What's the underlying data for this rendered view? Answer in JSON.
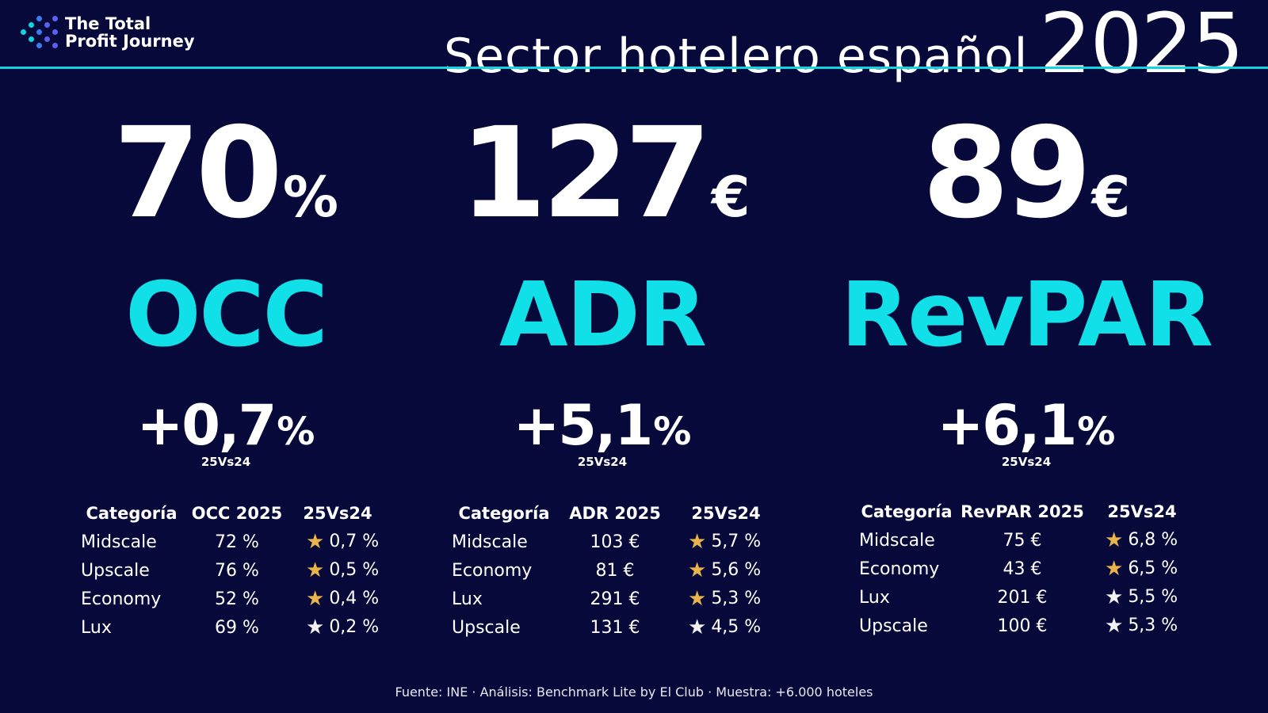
{
  "brand": {
    "line1": "The Total",
    "line2": "Profit Journey",
    "accent": "#12d4e0"
  },
  "title": {
    "main": "Sector hotelero español",
    "year": "2025"
  },
  "metrics": [
    {
      "value": "70",
      "unit": "%",
      "label": "OCC",
      "change": "+0,7",
      "change_unit": "%",
      "compare": "25Vs24",
      "table": {
        "headers": [
          "Categoría",
          "OCC 2025",
          "25Vs24"
        ],
        "rows": [
          {
            "category": "Midscale",
            "value": "72 %",
            "change": "0,7 %",
            "star": "gold",
            "star_icon": "★"
          },
          {
            "category": "Upscale",
            "value": "76 %",
            "change": "0,5 %",
            "star": "gold",
            "star_icon": "★"
          },
          {
            "category": "Economy",
            "value": "52 %",
            "change": "0,4 %",
            "star": "gold",
            "star_icon": "★"
          },
          {
            "category": "Lux",
            "value": "69 %",
            "change": "0,2 %",
            "star": "white",
            "star_icon": "★"
          }
        ]
      }
    },
    {
      "value": "127",
      "unit": "€",
      "label": "ADR",
      "change": "+5,1",
      "change_unit": "%",
      "compare": "25Vs24",
      "table": {
        "headers": [
          "Categoría",
          "ADR 2025",
          "25Vs24"
        ],
        "rows": [
          {
            "category": "Midscale",
            "value": "103 €",
            "change": "5,7 %",
            "star": "gold",
            "star_icon": "★"
          },
          {
            "category": "Economy",
            "value": "81 €",
            "change": "5,6 %",
            "star": "gold",
            "star_icon": "★"
          },
          {
            "category": "Lux",
            "value": "291 €",
            "change": "5,3 %",
            "star": "gold",
            "star_icon": "★"
          },
          {
            "category": "Upscale",
            "value": "131 €",
            "change": "4,5 %",
            "star": "white",
            "star_icon": "★"
          }
        ]
      }
    },
    {
      "value": "89",
      "unit": "€",
      "label": "RevPAR",
      "change": "+6,1",
      "change_unit": "%",
      "compare": "25Vs24",
      "table": {
        "headers": [
          "Categoría",
          "RevPAR 2025",
          "25Vs24"
        ],
        "rows": [
          {
            "category": "Midscale",
            "value": "75 €",
            "change": "6,8 %",
            "star": "gold",
            "star_icon": "★"
          },
          {
            "category": "Economy",
            "value": "43 €",
            "change": "6,5 %",
            "star": "gold",
            "star_icon": "★"
          },
          {
            "category": "Lux",
            "value": "201 €",
            "change": "5,5 %",
            "star": "white",
            "star_icon": "★"
          },
          {
            "category": "Upscale",
            "value": "100 €",
            "change": "5,3 %",
            "star": "white",
            "star_icon": "★"
          }
        ]
      }
    }
  ],
  "footer": "Fuente: INE · Análisis: Benchmark Lite by El Club ·  Muestra: +6.000 hoteles"
}
